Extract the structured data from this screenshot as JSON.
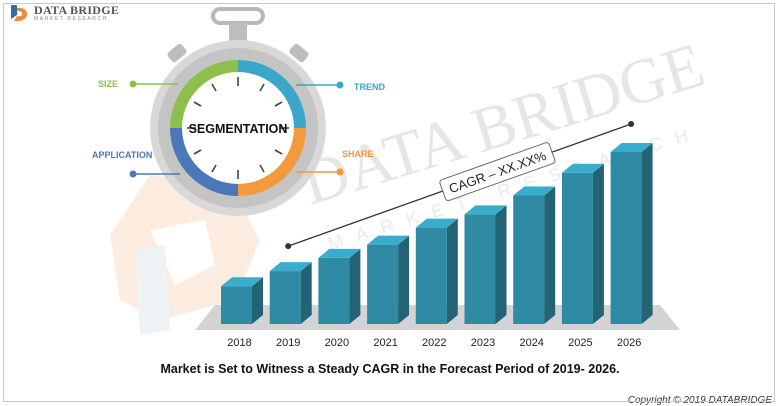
{
  "logo": {
    "brand": "DATA BRIDGE",
    "sub": "MARKET RESEARCH",
    "icon": "data-bridge-logo-icon"
  },
  "watermark": {
    "brand": "DATA BRIDGE",
    "sub": "MARKET RESEARCH"
  },
  "segmentation": {
    "center_label": "SEGMENTATION",
    "labels": {
      "size": "SIZE",
      "trend": "TREND",
      "application": "APPLICATION",
      "share": "SHARE"
    },
    "colors": {
      "size": "#8dc04a",
      "trend": "#3aa6c9",
      "application": "#4a78b8",
      "share": "#f39a3c"
    },
    "icon": "stopwatch-icon"
  },
  "chart_data": {
    "type": "bar",
    "categories": [
      "2018",
      "2019",
      "2020",
      "2021",
      "2022",
      "2023",
      "2024",
      "2025",
      "2026"
    ],
    "values": [
      1.0,
      1.4,
      1.75,
      2.1,
      2.55,
      2.9,
      3.4,
      4.0,
      4.55
    ],
    "ylim": [
      0,
      5
    ],
    "title": "",
    "xlabel": "",
    "ylabel": "",
    "annotation": "CAGR – XX.XX%",
    "bar_color": "#2f8aa3",
    "grid": false
  },
  "caption": "Market is Set to Witness a Steady CAGR in the Forecast Period of 2019- 2026.",
  "copyright": "Copyright © 2019 DATABRIDGE"
}
